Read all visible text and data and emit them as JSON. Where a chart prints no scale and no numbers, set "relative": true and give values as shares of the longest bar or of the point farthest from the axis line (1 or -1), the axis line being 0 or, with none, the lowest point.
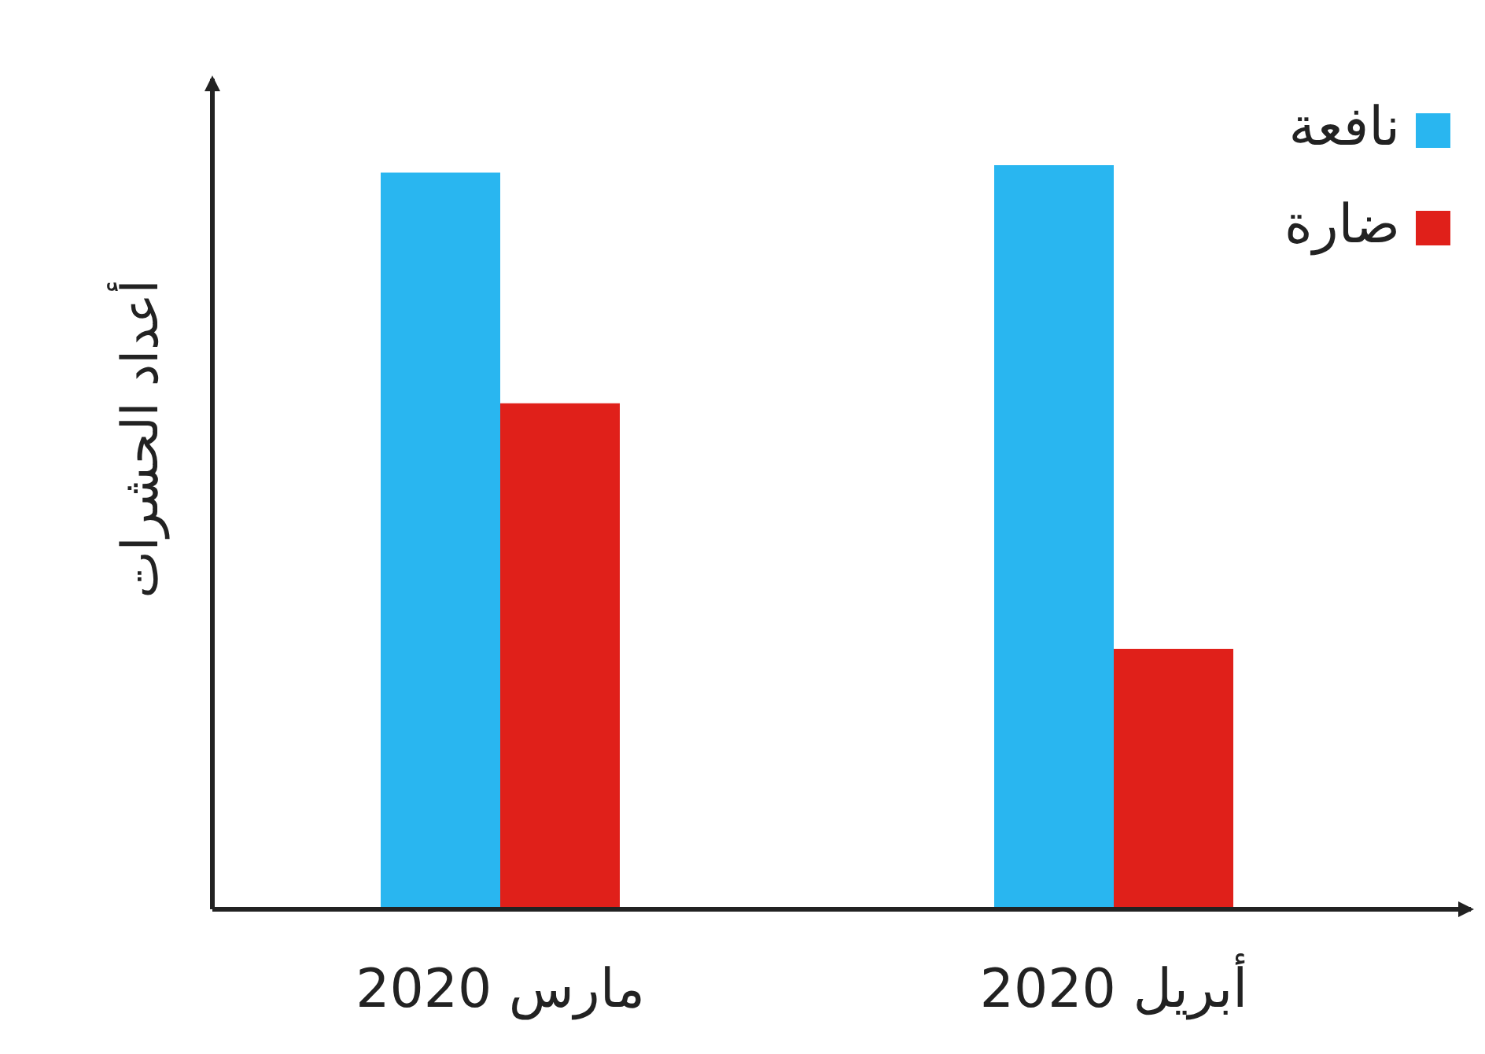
{
  "chart_data": {
    "type": "bar",
    "relative": true,
    "ylabel": "أعداد الحشرات",
    "categories": [
      "مارس 2020",
      "أبريل 2020"
    ],
    "legend": "top right",
    "series": [
      {
        "name": "نافعة",
        "color": "#29b6f0",
        "values": [
          0.99,
          1
        ]
      },
      {
        "name": "ضارة",
        "color": "#e0201a",
        "values": [
          0.68,
          0.35
        ]
      }
    ]
  }
}
